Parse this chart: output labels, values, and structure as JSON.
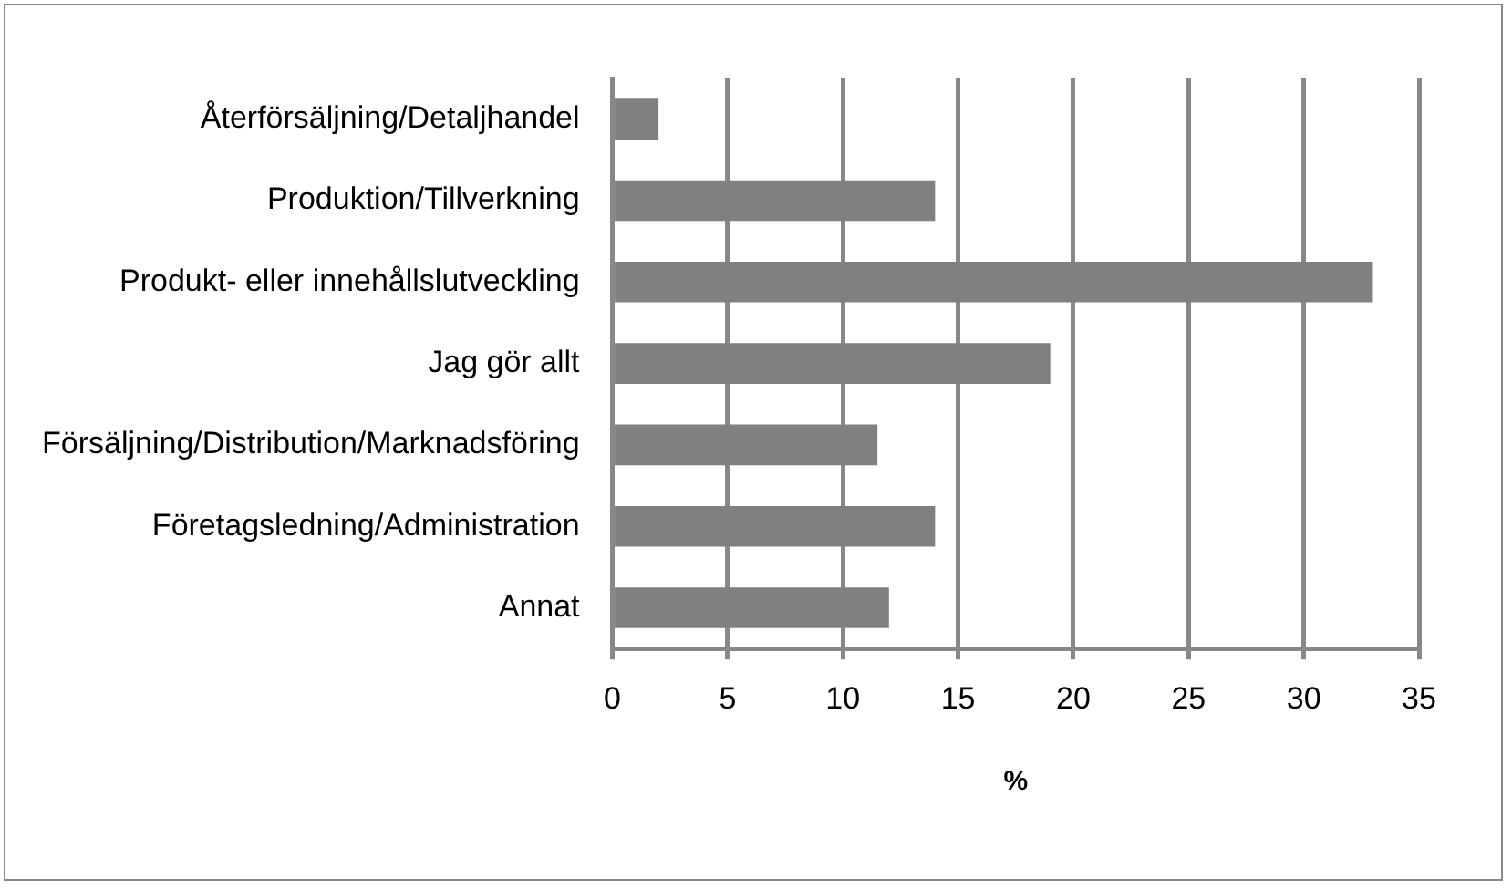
{
  "chart_data": {
    "type": "bar",
    "orientation": "horizontal",
    "xlabel": "%",
    "categories": [
      "Återförsäljning/Detaljhandel",
      "Produktion/Tillverkning",
      "Produkt- eller innehållslutveckling",
      "Jag gör allt",
      "Försäljning/Distribution/Marknadsföring",
      "Företagsledning/Administration",
      "Annat"
    ],
    "values": [
      2,
      14,
      33,
      19,
      11.5,
      14,
      12
    ],
    "color": "#808080",
    "xlim": [
      0,
      35
    ],
    "xticks": [
      0,
      5,
      10,
      15,
      20,
      25,
      30,
      35
    ],
    "grid": "x",
    "legend": false
  }
}
